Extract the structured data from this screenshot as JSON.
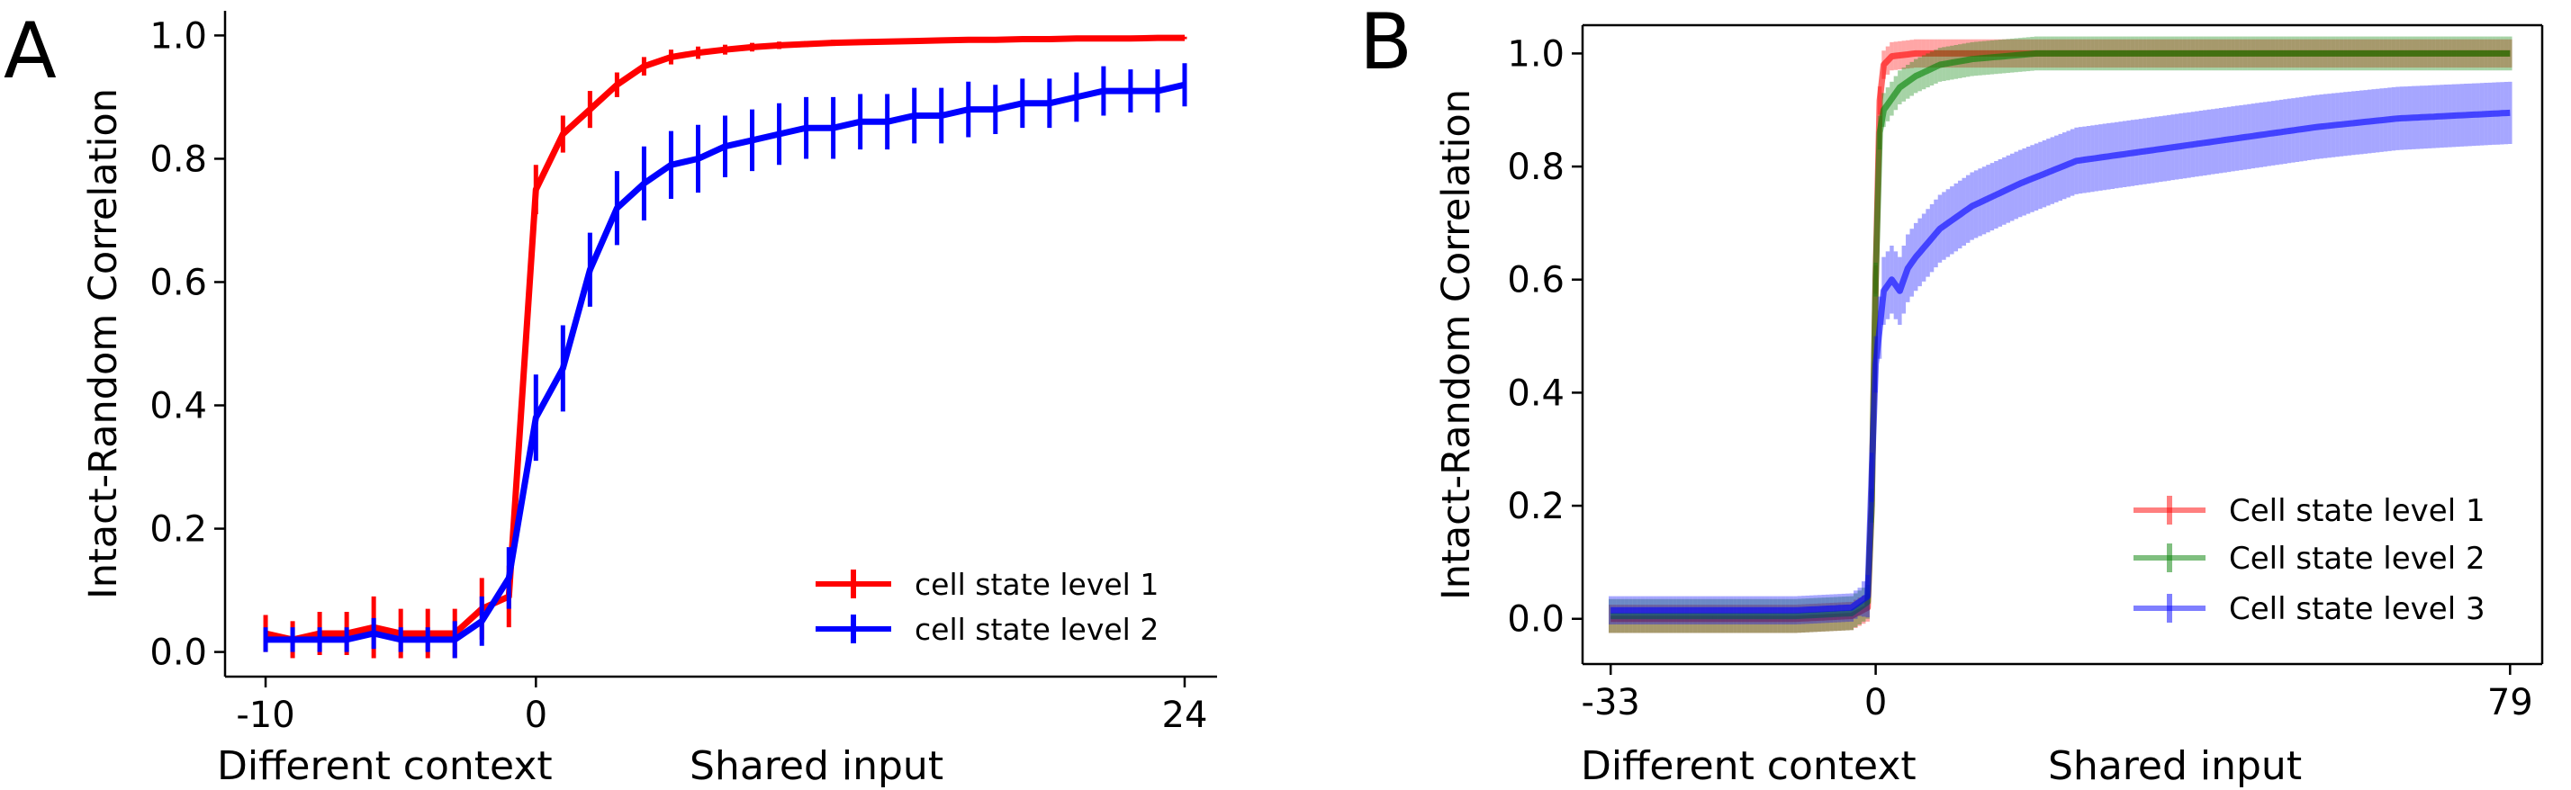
{
  "chart_data": [
    {
      "panel_label": "A",
      "type": "line",
      "errorbars": "vertical-caps",
      "ylabel": "Intact-Random Correlation",
      "xlabel_left": "Different context",
      "xlabel_right": "Shared input",
      "xlim": [
        -11.5,
        25.2
      ],
      "ylim": [
        -0.04,
        1.04
      ],
      "xticks": [
        {
          "value": -10,
          "label": "-10"
        },
        {
          "value": 0,
          "label": "0"
        },
        {
          "value": 24,
          "label": "24"
        }
      ],
      "yticks": [
        {
          "value": 0.0,
          "label": "0.0"
        },
        {
          "value": 0.2,
          "label": "0.2"
        },
        {
          "value": 0.4,
          "label": "0.4"
        },
        {
          "value": 0.6,
          "label": "0.6"
        },
        {
          "value": 0.8,
          "label": "0.8"
        },
        {
          "value": 1.0,
          "label": "1.0"
        }
      ],
      "legend_position": "lower-right",
      "x": [
        -10,
        -9,
        -8,
        -7,
        -6,
        -5,
        -4,
        -3,
        -2,
        -1,
        0,
        1,
        2,
        3,
        4,
        5,
        6,
        7,
        8,
        9,
        10,
        11,
        12,
        13,
        14,
        15,
        16,
        17,
        18,
        19,
        20,
        21,
        22,
        23,
        24
      ],
      "series": [
        {
          "name": "cell state level 1",
          "color": "#ff0000",
          "values": [
            0.03,
            0.02,
            0.03,
            0.03,
            0.04,
            0.03,
            0.03,
            0.03,
            0.07,
            0.09,
            0.75,
            0.84,
            0.88,
            0.92,
            0.95,
            0.965,
            0.972,
            0.977,
            0.981,
            0.984,
            0.986,
            0.988,
            0.989,
            0.99,
            0.991,
            0.992,
            0.993,
            0.993,
            0.994,
            0.994,
            0.995,
            0.995,
            0.995,
            0.996,
            0.996
          ],
          "err": [
            0.03,
            0.03,
            0.035,
            0.035,
            0.05,
            0.04,
            0.04,
            0.04,
            0.05,
            0.05,
            0.04,
            0.03,
            0.03,
            0.02,
            0.015,
            0.012,
            0.01,
            0.008,
            0.007,
            0.006,
            0.005,
            0.005,
            0.004,
            0.004,
            0.004,
            0.003,
            0.003,
            0.003,
            0.003,
            0.003,
            0.002,
            0.002,
            0.002,
            0.002,
            0.002
          ]
        },
        {
          "name": "cell state level 2",
          "color": "#0000ff",
          "values": [
            0.02,
            0.02,
            0.02,
            0.02,
            0.03,
            0.02,
            0.02,
            0.02,
            0.05,
            0.12,
            0.38,
            0.46,
            0.62,
            0.72,
            0.76,
            0.79,
            0.8,
            0.82,
            0.83,
            0.84,
            0.85,
            0.85,
            0.86,
            0.86,
            0.87,
            0.87,
            0.88,
            0.88,
            0.89,
            0.89,
            0.9,
            0.91,
            0.91,
            0.91,
            0.92
          ],
          "err": [
            0.02,
            0.02,
            0.02,
            0.02,
            0.025,
            0.02,
            0.02,
            0.03,
            0.04,
            0.05,
            0.07,
            0.07,
            0.06,
            0.06,
            0.06,
            0.055,
            0.055,
            0.05,
            0.05,
            0.05,
            0.05,
            0.05,
            0.045,
            0.045,
            0.045,
            0.045,
            0.045,
            0.04,
            0.04,
            0.04,
            0.04,
            0.04,
            0.035,
            0.035,
            0.035
          ]
        }
      ]
    },
    {
      "panel_label": "B",
      "type": "line",
      "errorbars": "shaded-bars",
      "ylabel": "Intact-Random Correlation",
      "xlabel_left": "Different context",
      "xlabel_right": "Shared input",
      "xlim": [
        -36.5,
        83
      ],
      "ylim": [
        -0.08,
        1.05
      ],
      "xticks": [
        {
          "value": -33,
          "label": "-33"
        },
        {
          "value": 0,
          "label": "0"
        },
        {
          "value": 79,
          "label": "79"
        }
      ],
      "yticks": [
        {
          "value": 0.0,
          "label": "0.0"
        },
        {
          "value": 0.2,
          "label": "0.2"
        },
        {
          "value": 0.4,
          "label": "0.4"
        },
        {
          "value": 0.6,
          "label": "0.6"
        },
        {
          "value": 0.8,
          "label": "0.8"
        },
        {
          "value": 1.0,
          "label": "1.0"
        }
      ],
      "legend_position": "lower-right",
      "x_range": [
        -33,
        79
      ],
      "series": [
        {
          "name": "Cell state level 1",
          "color": "#ff0000",
          "anchors": {
            "x": [
              -33,
              -10,
              -3,
              -1,
              -0.5,
              0,
              0.3,
              0.6,
              1,
              2,
              5,
              79
            ],
            "y": [
              0.0,
              0.0,
              0.005,
              0.02,
              0.2,
              0.6,
              0.85,
              0.95,
              0.98,
              0.995,
              1.0,
              1.0
            ]
          },
          "err": 0.025
        },
        {
          "name": "Cell state level 2",
          "color": "#008000",
          "anchors": {
            "x": [
              -33,
              -10,
              -3,
              -1,
              -0.5,
              0,
              0.5,
              1,
              2,
              3,
              5,
              8,
              12,
              20,
              79
            ],
            "y": [
              0.005,
              0.005,
              0.01,
              0.03,
              0.2,
              0.6,
              0.86,
              0.9,
              0.92,
              0.94,
              0.96,
              0.98,
              0.99,
              1.0,
              1.0
            ]
          },
          "err": 0.03
        },
        {
          "name": "Cell state level 3",
          "color": "#0000ff",
          "anchors": {
            "x": [
              -33,
              -10,
              -3,
              -1,
              -0.5,
              0,
              1,
              2,
              3,
              4,
              5,
              8,
              12,
              18,
              25,
              35,
              45,
              55,
              65,
              79
            ],
            "y": [
              0.015,
              0.015,
              0.02,
              0.04,
              0.25,
              0.45,
              0.58,
              0.6,
              0.58,
              0.62,
              0.64,
              0.69,
              0.73,
              0.77,
              0.81,
              0.83,
              0.85,
              0.87,
              0.885,
              0.895
            ]
          },
          "err_anchors": {
            "x": [
              -33,
              -2,
              0,
              1,
              10,
              79
            ],
            "y": [
              0.025,
              0.025,
              0.05,
              0.06,
              0.06,
              0.055
            ]
          }
        }
      ]
    }
  ]
}
